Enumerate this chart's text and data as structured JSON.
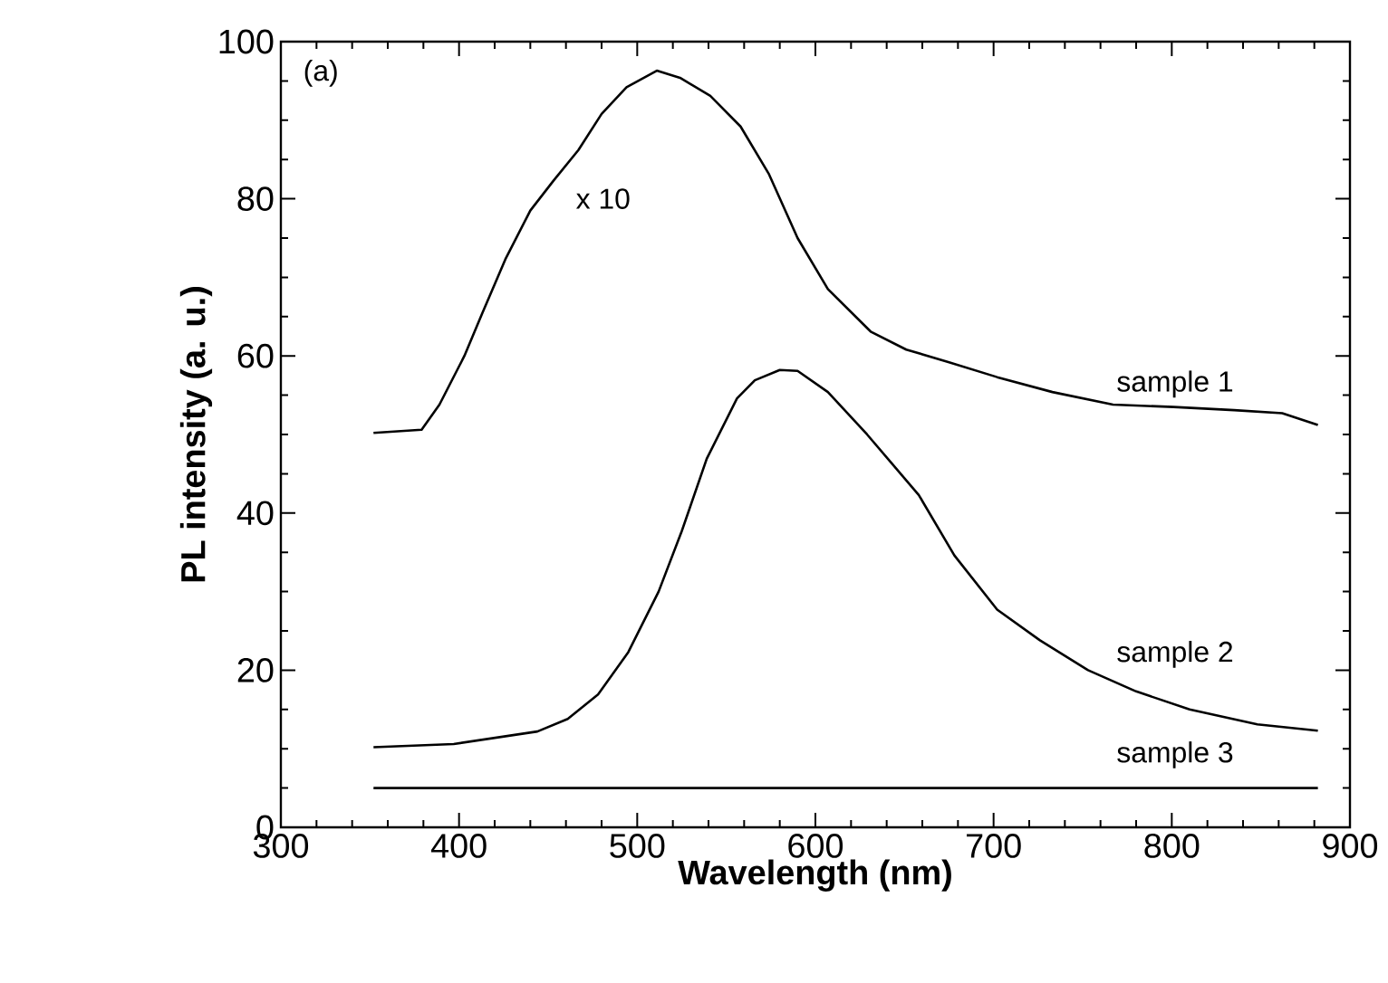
{
  "chart_data": {
    "type": "line",
    "xlabel": "Wavelength (nm)",
    "ylabel": "PL intensity (a. u.)",
    "annotations": [
      "(a)",
      "x 10"
    ],
    "xlim": [
      300,
      900
    ],
    "xticks": [
      300,
      400,
      500,
      600,
      700,
      800,
      900
    ],
    "ylim": [
      0,
      100
    ],
    "yticks": [
      0,
      20,
      40,
      60,
      80,
      100
    ],
    "legend": false,
    "marker": "none",
    "line_style": "solid",
    "series": [
      {
        "name": "sample 1",
        "color": "#000000",
        "x": [
          352,
          379,
          389,
          403,
          413,
          426,
          440,
          453,
          467,
          480,
          494,
          511,
          524,
          541,
          558,
          574,
          590,
          607,
          631,
          651,
          675,
          702,
          733,
          767,
          801,
          835,
          862,
          882
        ],
        "values": [
          50.2,
          50.6,
          53.8,
          60,
          65.4,
          72.3,
          78.5,
          82.3,
          86.2,
          90.8,
          94.2,
          96.3,
          95.4,
          93.1,
          89.2,
          83.1,
          75,
          68.5,
          63.1,
          60.8,
          59.2,
          57.3,
          55.4,
          53.8,
          53.5,
          53.1,
          52.7,
          51.2
        ]
      },
      {
        "name": "sample 2",
        "color": "#000000",
        "x": [
          352,
          397,
          444,
          461,
          478,
          495,
          512,
          525,
          539,
          556,
          566,
          580,
          590,
          607,
          629,
          658,
          678,
          702,
          726,
          753,
          780,
          810,
          848,
          882
        ],
        "values": [
          10.2,
          10.6,
          12.2,
          13.8,
          16.9,
          22.3,
          30,
          37.7,
          46.9,
          54.6,
          56.9,
          58.2,
          58.1,
          55.4,
          50,
          42.3,
          34.6,
          27.7,
          23.8,
          20,
          17.3,
          15,
          13.1,
          12.3
        ]
      },
      {
        "name": "sample 3",
        "color": "#000000",
        "x": [
          352,
          500,
          700,
          882
        ],
        "values": [
          5,
          5,
          5,
          5
        ]
      }
    ]
  }
}
